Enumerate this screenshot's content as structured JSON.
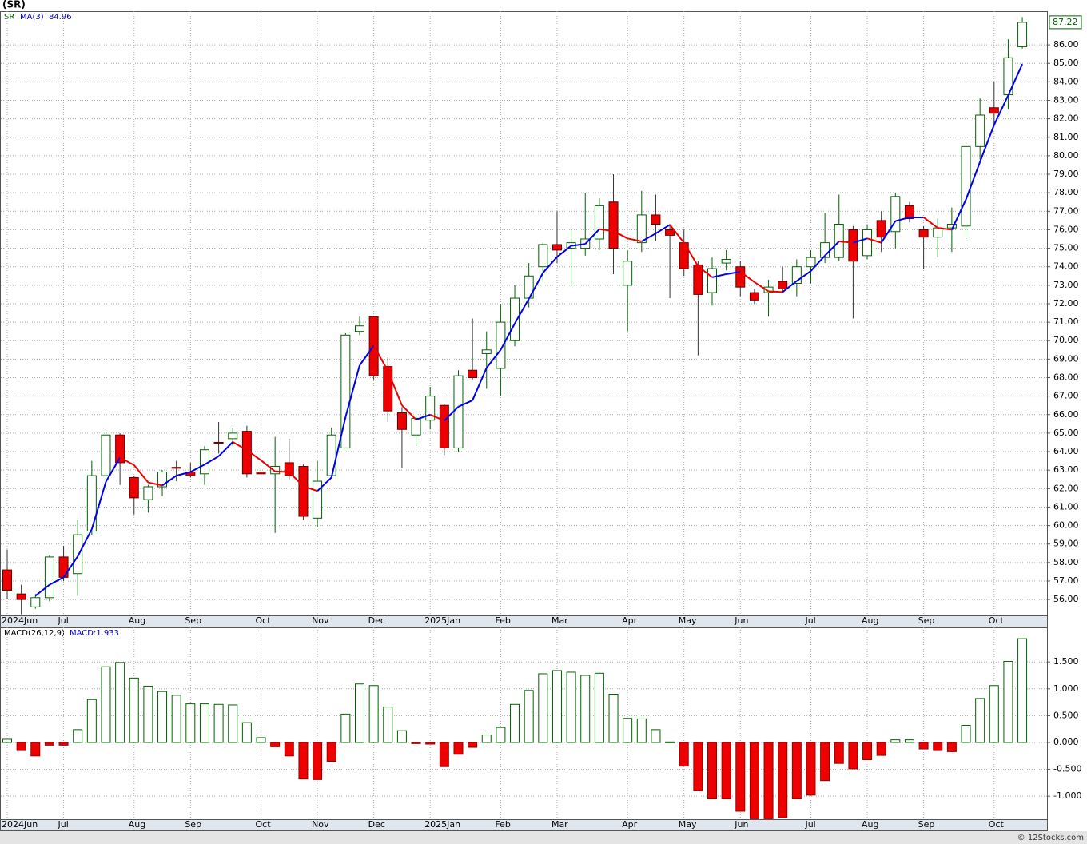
{
  "chart_data": [
    {
      "type": "candlestick",
      "title": "(SR)",
      "symbol": "SR",
      "ma_name": "MA(3)",
      "open": [
        57.6,
        56.3,
        55.6,
        56.1,
        58.3,
        57.4,
        59.7,
        62.7,
        64.9,
        62.6,
        61.4,
        62.1,
        63.15,
        62.9,
        62.8,
        64.5,
        64.7,
        65.1,
        62.9,
        62.8,
        63.4,
        63.2,
        60.4,
        62.7,
        64.2,
        70.5,
        71.3,
        68.6,
        66.1,
        64.9,
        65.7,
        66.5,
        64.2,
        68.4,
        69.3,
        68.5,
        70.0,
        72.3,
        74.0,
        75.2,
        75.0,
        75.0,
        75.5,
        77.5,
        73.0,
        75.3,
        76.8,
        76.0,
        75.3,
        74.1,
        72.6,
        74.2,
        74.0,
        72.6,
        72.6,
        73.2,
        73.1,
        74.0,
        74.5,
        74.5,
        76.0,
        74.6,
        76.5,
        75.9,
        77.3,
        76.0,
        75.6,
        76.1,
        76.2,
        80.5,
        82.6,
        83.3,
        85.9
      ],
      "high": [
        58.7,
        56.8,
        56.3,
        58.4,
        58.9,
        60.3,
        63.5,
        65.0,
        65.0,
        62.7,
        62.2,
        63.0,
        63.5,
        63.4,
        64.3,
        65.6,
        65.3,
        65.4,
        63.0,
        64.8,
        64.7,
        63.3,
        63.5,
        65.3,
        70.4,
        71.3,
        71.3,
        69.1,
        66.4,
        65.9,
        67.5,
        66.6,
        68.4,
        71.2,
        70.5,
        72.0,
        73.0,
        74.2,
        75.3,
        77.0,
        76.0,
        78.0,
        77.7,
        79.0,
        74.9,
        78.1,
        77.9,
        76.3,
        76.0,
        74.3,
        74.5,
        74.9,
        74.3,
        72.8,
        73.3,
        74.0,
        74.4,
        74.9,
        76.9,
        77.9,
        76.2,
        76.3,
        77.0,
        78.0,
        77.5,
        76.2,
        76.6,
        77.2,
        80.6,
        83.1,
        84.0,
        86.3,
        87.5
      ],
      "low": [
        56.0,
        55.2,
        55.5,
        55.9,
        57.0,
        56.2,
        59.5,
        62.5,
        62.2,
        60.6,
        60.7,
        61.6,
        62.4,
        62.6,
        62.2,
        63.9,
        64.3,
        62.6,
        61.1,
        59.6,
        62.5,
        60.3,
        59.9,
        62.6,
        64.2,
        70.3,
        67.9,
        65.6,
        63.1,
        64.3,
        65.2,
        63.8,
        64.0,
        67.9,
        67.4,
        67.0,
        69.7,
        71.8,
        73.2,
        74.2,
        73.0,
        74.6,
        74.9,
        73.6,
        70.5,
        74.8,
        75.4,
        72.3,
        73.5,
        69.2,
        71.9,
        73.8,
        72.4,
        72.0,
        71.3,
        72.6,
        72.4,
        73.1,
        74.2,
        74.3,
        71.2,
        74.4,
        74.8,
        75.0,
        76.4,
        73.9,
        74.5,
        74.8,
        75.5,
        79.8,
        81.6,
        82.5,
        85.8
      ],
      "close": [
        56.5,
        56.0,
        56.1,
        58.3,
        57.2,
        59.5,
        62.7,
        64.9,
        63.4,
        61.5,
        62.1,
        62.9,
        63.1,
        62.7,
        64.1,
        64.45,
        65.0,
        62.8,
        62.8,
        63.2,
        62.7,
        60.5,
        62.4,
        64.9,
        70.3,
        70.8,
        68.1,
        66.2,
        65.2,
        65.8,
        67.0,
        64.2,
        68.1,
        68.0,
        69.5,
        71.0,
        72.3,
        73.5,
        75.2,
        74.9,
        75.3,
        75.5,
        77.3,
        75.0,
        74.3,
        76.8,
        76.3,
        75.7,
        73.9,
        72.5,
        73.9,
        74.4,
        72.9,
        72.2,
        72.9,
        72.8,
        74.0,
        74.5,
        75.3,
        76.3,
        74.3,
        76.0,
        75.6,
        77.8,
        76.6,
        75.6,
        76.1,
        76.3,
        80.5,
        82.2,
        82.3,
        85.3,
        87.22
      ],
      "ma": [
        null,
        null,
        56.2,
        56.8,
        57.2,
        58.33,
        59.8,
        62.37,
        63.67,
        63.27,
        62.33,
        62.17,
        62.7,
        62.9,
        63.3,
        63.75,
        64.52,
        64.08,
        63.53,
        62.93,
        62.9,
        62.13,
        61.87,
        62.6,
        65.87,
        68.67,
        69.73,
        68.37,
        66.5,
        65.73,
        66,
        65.67,
        66.43,
        66.77,
        68.53,
        69.5,
        70.93,
        72.27,
        73.67,
        74.53,
        75.13,
        75.23,
        76.03,
        75.93,
        75.53,
        75.37,
        75.8,
        76.27,
        75.3,
        74.03,
        73.43,
        73.6,
        73.73,
        73.17,
        72.67,
        72.63,
        73.23,
        73.77,
        74.6,
        75.37,
        75.3,
        75.53,
        75.3,
        76.47,
        76.67,
        76.67,
        76.1,
        76,
        77.63,
        79.67,
        81.67,
        83.27,
        84.96
      ],
      "up_color": "#006400",
      "down_color": "#ee0000",
      "ma_up_color": "#0000ee",
      "ma_down_color": "#ee0000",
      "ylim": [
        55.14,
        87.82
      ],
      "yticks": [
        {
          "value": 56,
          "label": "56.00"
        },
        {
          "value": 57,
          "label": "57.00"
        },
        {
          "value": 58,
          "label": "58.00"
        },
        {
          "value": 59,
          "label": "59.00"
        },
        {
          "value": 60,
          "label": "60.00"
        },
        {
          "value": 61,
          "label": "61.00"
        },
        {
          "value": 62,
          "label": "62.00"
        },
        {
          "value": 63,
          "label": "63.00"
        },
        {
          "value": 64,
          "label": "64.00"
        },
        {
          "value": 65,
          "label": "65.00"
        },
        {
          "value": 66,
          "label": "66.00"
        },
        {
          "value": 67,
          "label": "67.00"
        },
        {
          "value": 68,
          "label": "68.00"
        },
        {
          "value": 69,
          "label": "69.00"
        },
        {
          "value": 70,
          "label": "70.00"
        },
        {
          "value": 71,
          "label": "71.00"
        },
        {
          "value": 72,
          "label": "72.00"
        },
        {
          "value": 73,
          "label": "73.00"
        },
        {
          "value": 74,
          "label": "74.00"
        },
        {
          "value": 75,
          "label": "75.00"
        },
        {
          "value": 76,
          "label": "76.00"
        },
        {
          "value": 77,
          "label": "77.00"
        },
        {
          "value": 78,
          "label": "78.00"
        },
        {
          "value": 79,
          "label": "79.00"
        },
        {
          "value": 80,
          "label": "80.00"
        },
        {
          "value": 81,
          "label": "81.00"
        },
        {
          "value": 82,
          "label": "82.00"
        },
        {
          "value": 83,
          "label": "83.00"
        },
        {
          "value": 84,
          "label": "84.00"
        },
        {
          "value": 85,
          "label": "85.00"
        },
        {
          "value": 86,
          "label": "86.00"
        }
      ],
      "xticks": [
        {
          "value": 0,
          "label": "2024Jun"
        },
        {
          "value": 4,
          "label": "Jul"
        },
        {
          "value": 9,
          "label": "Aug"
        },
        {
          "value": 13,
          "label": "Sep"
        },
        {
          "value": 18,
          "label": "Oct"
        },
        {
          "value": 22,
          "label": "Nov"
        },
        {
          "value": 26,
          "label": "Dec"
        },
        {
          "value": 30,
          "label": "2025Jan"
        },
        {
          "value": 35,
          "label": "Feb"
        },
        {
          "value": 39,
          "label": "Mar"
        },
        {
          "value": 44,
          "label": "Apr"
        },
        {
          "value": 48,
          "label": "May"
        },
        {
          "value": 52,
          "label": "Jun"
        },
        {
          "value": 57,
          "label": "Jul"
        },
        {
          "value": 61,
          "label": "Aug"
        },
        {
          "value": 65,
          "label": "Sep"
        },
        {
          "value": 70,
          "label": "Oct"
        }
      ],
      "grid": true
    },
    {
      "type": "bar",
      "indicator": "MACD(26,12,9)",
      "legend": "MACD:1.933",
      "values": [
        0.06,
        -0.15,
        -0.25,
        -0.05,
        -0.05,
        0.24,
        0.8,
        1.41,
        1.49,
        1.2,
        1.05,
        0.95,
        0.88,
        0.72,
        0.72,
        0.71,
        0.7,
        0.37,
        0.09,
        -0.08,
        -0.25,
        -0.68,
        -0.69,
        -0.35,
        0.53,
        1.09,
        1.06,
        0.66,
        0.22,
        -0.02,
        -0.03,
        -0.45,
        -0.22,
        -0.09,
        0.14,
        0.28,
        0.71,
        0.97,
        1.28,
        1.34,
        1.31,
        1.25,
        1.29,
        0.9,
        0.45,
        0.44,
        0.24,
        0.01,
        -0.44,
        -0.9,
        -1.05,
        -1.05,
        -1.28,
        -1.42,
        -1.42,
        -1.4,
        -1.05,
        -0.98,
        -0.71,
        -0.39,
        -0.49,
        -0.32,
        -0.24,
        0.05,
        0.05,
        -0.12,
        -0.15,
        -0.17,
        0.32,
        0.82,
        1.06,
        1.51,
        1.933
      ],
      "up_color": "#006400",
      "down_color": "#ee0000",
      "ylim": [
        -1.429,
        2.143
      ],
      "yticks": [
        {
          "value": -1,
          "label": "-1.000"
        },
        {
          "value": -0.5,
          "label": "-0.500"
        },
        {
          "value": 0,
          "label": "0.000"
        },
        {
          "value": 0.5,
          "label": "0.500"
        },
        {
          "value": 1,
          "label": "1.000"
        },
        {
          "value": 1.5,
          "label": "1.500"
        }
      ],
      "xticks": [
        {
          "value": 0,
          "label": "2024Jun"
        },
        {
          "value": 4,
          "label": "Jul"
        },
        {
          "value": 9,
          "label": "Aug"
        },
        {
          "value": 13,
          "label": "Sep"
        },
        {
          "value": 18,
          "label": "Oct"
        },
        {
          "value": 22,
          "label": "Nov"
        },
        {
          "value": 26,
          "label": "Dec"
        },
        {
          "value": 30,
          "label": "2025Jan"
        },
        {
          "value": 35,
          "label": "Feb"
        },
        {
          "value": 39,
          "label": "Mar"
        },
        {
          "value": 44,
          "label": "Apr"
        },
        {
          "value": 48,
          "label": "May"
        },
        {
          "value": 52,
          "label": "Jun"
        },
        {
          "value": 57,
          "label": "Jul"
        },
        {
          "value": 61,
          "label": "Aug"
        },
        {
          "value": 65,
          "label": "Sep"
        },
        {
          "value": 70,
          "label": "Oct"
        }
      ],
      "grid": true
    }
  ],
  "footer": "© 12Stocks.com"
}
